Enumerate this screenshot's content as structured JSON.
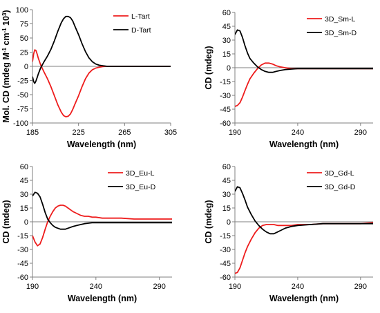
{
  "colors": {
    "red": "#ee1c1c",
    "black": "#000000",
    "axis": "#7f7f7f"
  },
  "chart_data": [
    {
      "id": "a",
      "type": "line",
      "xlabel": "Wavelength (nm)",
      "ylabel": "Mol. CD (mdeg M",
      "ylabel_sup1": "-1",
      "ylabel_mid": " cm",
      "ylabel_sup2": "-1",
      "ylabel_mid2": " 10",
      "ylabel_sup3": "3",
      "ylabel_end": ")",
      "xlim": [
        185,
        305
      ],
      "ylim": [
        -100,
        100
      ],
      "xticks": [
        185,
        225,
        265,
        305
      ],
      "yticks": [
        -100,
        -75,
        -50,
        -25,
        0,
        25,
        50,
        75,
        100
      ],
      "legend_position": "top-right",
      "series": [
        {
          "name": "L-Tart",
          "color": "#ee1c1c",
          "x": [
            185,
            186,
            187,
            188,
            189,
            190,
            192,
            195,
            198,
            201,
            204,
            207,
            210,
            212,
            214,
            216,
            218,
            220,
            222,
            225,
            228,
            231,
            234,
            237,
            240,
            243,
            246,
            250,
            255,
            260,
            270,
            280,
            290,
            305
          ],
          "y": [
            8,
            22,
            29,
            28,
            22,
            15,
            3,
            -10,
            -22,
            -36,
            -52,
            -68,
            -81,
            -87,
            -89,
            -88,
            -84,
            -76,
            -66,
            -52,
            -36,
            -22,
            -12,
            -6,
            -3,
            -1.5,
            -0.5,
            0,
            0,
            0,
            0,
            0,
            0,
            0
          ]
        },
        {
          "name": "D-Tart",
          "color": "#000000",
          "x": [
            185,
            186,
            187,
            188,
            189,
            190,
            192,
            195,
            198,
            201,
            204,
            207,
            210,
            212,
            214,
            216,
            218,
            220,
            222,
            225,
            228,
            231,
            234,
            237,
            240,
            243,
            246,
            250,
            255,
            260,
            270,
            280,
            290,
            305
          ],
          "y": [
            -18,
            -27,
            -30,
            -26,
            -20,
            -14,
            -3,
            8,
            18,
            30,
            45,
            62,
            77,
            84,
            88,
            88,
            86,
            80,
            70,
            56,
            40,
            26,
            15,
            8,
            4,
            2,
            1,
            0,
            0,
            0,
            0,
            0,
            0,
            0
          ]
        }
      ]
    },
    {
      "id": "b",
      "type": "line",
      "xlabel": "Wavelength (nm)",
      "ylabel": "CD (mdeg)",
      "xlim": [
        190,
        300
      ],
      "ylim": [
        -60,
        60
      ],
      "xticks": [
        190,
        240,
        290
      ],
      "yticks": [
        -60,
        -45,
        -30,
        -15,
        0,
        15,
        30,
        45,
        60
      ],
      "legend_position": "top-right",
      "series": [
        {
          "name": "3D_Sm-L",
          "color": "#ee1c1c",
          "x": [
            190,
            192,
            194,
            196,
            198,
            200,
            202,
            205,
            208,
            211,
            214,
            217,
            220,
            223,
            226,
            230,
            235,
            240,
            250,
            260,
            270,
            280,
            290,
            300
          ],
          "y": [
            -42,
            -41,
            -38,
            -32,
            -25,
            -18,
            -12,
            -6,
            -1,
            3,
            5,
            5,
            4,
            2,
            1,
            0,
            -1,
            -1,
            -1,
            -1,
            -1,
            -1,
            -1,
            -1
          ]
        },
        {
          "name": "3D_Sm-D",
          "color": "#000000",
          "x": [
            190,
            192,
            194,
            196,
            198,
            200,
            202,
            205,
            208,
            211,
            214,
            217,
            220,
            223,
            226,
            230,
            235,
            240,
            250,
            260,
            270,
            280,
            290,
            300
          ],
          "y": [
            36,
            41,
            40,
            33,
            24,
            16,
            10,
            5,
            1,
            -2,
            -4,
            -5,
            -5,
            -4,
            -3,
            -2,
            -1.5,
            -1,
            -1,
            -1,
            -1,
            -1,
            -1,
            -1
          ]
        }
      ]
    },
    {
      "id": "c",
      "type": "line",
      "xlabel": "Wavelength (nm)",
      "ylabel": "CD (mdeg)",
      "xlim": [
        190,
        300
      ],
      "ylim": [
        -60,
        60
      ],
      "xticks": [
        190,
        240,
        290
      ],
      "yticks": [
        -60,
        -45,
        -30,
        -15,
        0,
        15,
        30,
        45,
        60
      ],
      "legend_position": "top-right",
      "series": [
        {
          "name": "3D_Eu-L",
          "color": "#ee1c1c",
          "x": [
            190,
            192,
            194,
            196,
            198,
            200,
            202,
            204,
            206,
            208,
            210,
            212,
            214,
            216,
            218,
            220,
            222,
            225,
            228,
            231,
            234,
            237,
            240,
            245,
            250,
            260,
            270,
            280,
            290,
            300
          ],
          "y": [
            -15,
            -22,
            -26,
            -24,
            -17,
            -8,
            0,
            6,
            11,
            15,
            17,
            18,
            18,
            17,
            15,
            13,
            11,
            9,
            7,
            6,
            6,
            5,
            5,
            4,
            4,
            4,
            3,
            3,
            3,
            3
          ]
        },
        {
          "name": "3D_Eu-D",
          "color": "#000000",
          "x": [
            190,
            192,
            194,
            196,
            198,
            200,
            202,
            204,
            206,
            208,
            210,
            212,
            214,
            216,
            218,
            220,
            222,
            225,
            228,
            231,
            234,
            237,
            240,
            245,
            250,
            260,
            270,
            280,
            290,
            300
          ],
          "y": [
            28,
            32,
            31,
            27,
            19,
            10,
            3,
            -1,
            -4,
            -6,
            -7,
            -8,
            -8,
            -8,
            -7,
            -6,
            -5,
            -4,
            -3,
            -2,
            -1.5,
            -1,
            -1,
            -1,
            -1,
            -1,
            -1,
            -1,
            -1,
            -1
          ]
        }
      ]
    },
    {
      "id": "d",
      "type": "line",
      "xlabel": "Wavelength (nm)",
      "ylabel": "CD (mdeg)",
      "xlim": [
        190,
        300
      ],
      "ylim": [
        -60,
        60
      ],
      "xticks": [
        190,
        240,
        290
      ],
      "yticks": [
        -60,
        -45,
        -30,
        -15,
        0,
        15,
        30,
        45,
        60
      ],
      "legend_position": "top-right",
      "series": [
        {
          "name": "3D_Gd-L",
          "color": "#ee1c1c",
          "x": [
            190,
            192,
            194,
            196,
            198,
            200,
            203,
            206,
            209,
            212,
            215,
            218,
            221,
            224,
            227,
            230,
            235,
            240,
            250,
            260,
            270,
            280,
            290,
            300
          ],
          "y": [
            -56,
            -55,
            -50,
            -42,
            -34,
            -27,
            -19,
            -12,
            -7,
            -4,
            -3,
            -3,
            -3,
            -4,
            -4,
            -4,
            -4,
            -3,
            -3,
            -2,
            -2,
            -2,
            -2,
            -1
          ]
        },
        {
          "name": "3D_Gd-D",
          "color": "#000000",
          "x": [
            190,
            192,
            194,
            196,
            198,
            200,
            203,
            206,
            209,
            212,
            215,
            218,
            221,
            224,
            227,
            230,
            235,
            240,
            250,
            260,
            270,
            280,
            290,
            300
          ],
          "y": [
            33,
            38,
            37,
            31,
            24,
            16,
            8,
            1,
            -4,
            -8,
            -11,
            -13,
            -13,
            -11,
            -9,
            -7,
            -5,
            -4,
            -3,
            -2,
            -2,
            -2,
            -2,
            -2
          ]
        }
      ]
    }
  ]
}
